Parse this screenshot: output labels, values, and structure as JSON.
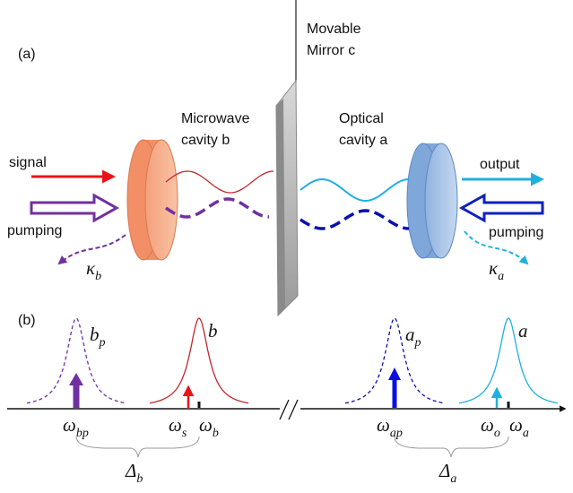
{
  "panel_a": {
    "label": "(a)",
    "mirror": [
      "Movable",
      "Mirror c"
    ],
    "microwave_cavity": [
      "Microwave",
      "cavity b"
    ],
    "optical_cavity": [
      "Optical",
      "cavity a"
    ],
    "signal": "signal",
    "pumping_left": "pumping",
    "output": "output",
    "pumping_right": "pumping",
    "kappa_b": {
      "symbol": "κ",
      "sub": "b"
    },
    "kappa_a": {
      "symbol": "κ",
      "sub": "a"
    }
  },
  "panel_b": {
    "label": "(b)",
    "peaks": [
      {
        "symbol": "b",
        "sub": "p"
      },
      {
        "symbol": "b"
      },
      {
        "symbol": "a",
        "sub": "p"
      },
      {
        "symbol": "a"
      }
    ],
    "frequencies": [
      {
        "symbol": "ω",
        "sub": "bp"
      },
      {
        "symbol": "ω",
        "sub": "s"
      },
      {
        "symbol": "ω",
        "sub": "b"
      },
      {
        "symbol": "ω",
        "sub": "ap"
      },
      {
        "symbol": "ω",
        "sub": "o"
      },
      {
        "symbol": "ω",
        "sub": "a"
      }
    ],
    "detunings": [
      {
        "symbol": "Δ",
        "sub": "b"
      },
      {
        "symbol": "Δ",
        "sub": "a"
      }
    ]
  }
}
